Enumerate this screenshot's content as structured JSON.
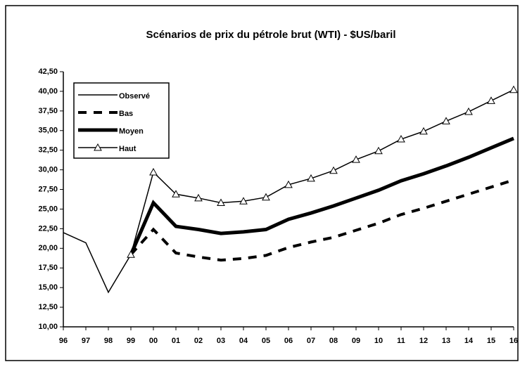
{
  "chart_data": {
    "type": "line",
    "title": "Scénarios de prix du pétrole brut (WTI) - $US/baril",
    "categories": [
      "96",
      "97",
      "98",
      "99",
      "00",
      "01",
      "02",
      "03",
      "04",
      "05",
      "06",
      "07",
      "08",
      "09",
      "10",
      "11",
      "12",
      "13",
      "14",
      "15",
      "16"
    ],
    "series": [
      {
        "name": "Observé",
        "color": "#000000",
        "line_width": 1.5,
        "values": [
          22.0,
          20.7,
          14.4,
          19.2,
          null,
          null,
          null,
          null,
          null,
          null,
          null,
          null,
          null,
          null,
          null,
          null,
          null,
          null,
          null,
          null,
          null
        ]
      },
      {
        "name": "Bas",
        "color": "#000000",
        "line_width": 4,
        "dash": "12,10",
        "values": [
          null,
          null,
          null,
          19.2,
          22.4,
          19.4,
          18.9,
          18.5,
          18.7,
          19.1,
          20.1,
          20.8,
          21.4,
          22.3,
          23.2,
          24.3,
          25.1,
          26.0,
          26.9,
          27.8,
          28.7
        ]
      },
      {
        "name": "Moyen",
        "color": "#000000",
        "line_width": 5,
        "values": [
          null,
          null,
          null,
          19.2,
          25.8,
          22.8,
          22.4,
          21.9,
          22.1,
          22.4,
          23.7,
          24.5,
          25.4,
          26.4,
          27.4,
          28.6,
          29.5,
          30.5,
          31.6,
          32.8,
          34.0
        ]
      },
      {
        "name": "Haut",
        "color": "#000000",
        "line_width": 1.5,
        "marker": "triangle",
        "values": [
          null,
          null,
          null,
          19.2,
          29.7,
          26.9,
          26.4,
          25.8,
          26.0,
          26.5,
          28.1,
          28.9,
          29.9,
          31.3,
          32.4,
          33.9,
          34.9,
          36.2,
          37.4,
          38.8,
          40.2
        ]
      }
    ],
    "ylim": [
      10,
      42.5
    ],
    "yticks": [
      {
        "value": 10,
        "label": "10,00"
      },
      {
        "value": 12.5,
        "label": "12,50"
      },
      {
        "value": 15,
        "label": "15,00"
      },
      {
        "value": 17.5,
        "label": "17,50"
      },
      {
        "value": 20,
        "label": "20,00"
      },
      {
        "value": 22.5,
        "label": "22,50"
      },
      {
        "value": 25,
        "label": "25,00"
      },
      {
        "value": 27.5,
        "label": "27,50"
      },
      {
        "value": 30,
        "label": "30,00"
      },
      {
        "value": 32.5,
        "label": "32,50"
      },
      {
        "value": 35,
        "label": "35,00"
      },
      {
        "value": 37.5,
        "label": "37,50"
      },
      {
        "value": 40,
        "label": "40,00"
      },
      {
        "value": 42.5,
        "label": "42,50"
      }
    ],
    "grid": false,
    "legend": "top-left"
  }
}
